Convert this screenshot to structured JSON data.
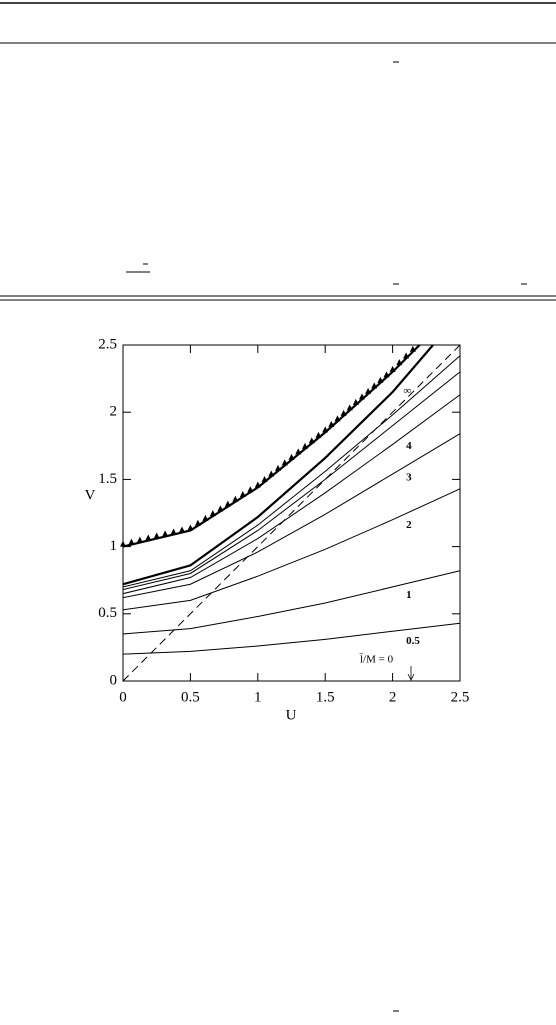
{
  "chart_data": {
    "type": "line",
    "xlabel": "U",
    "ylabel": "V",
    "annotation": "l̄/M = 0",
    "xlim": [
      0,
      2.5
    ],
    "ylim": [
      0,
      2.5
    ],
    "xticks": [
      0,
      0.5,
      1,
      1.5,
      2,
      2.5
    ],
    "yticks": [
      0,
      0.5,
      1,
      1.5,
      2,
      2.5
    ],
    "series": [
      {
        "name": "0.5",
        "color": "#000000",
        "x": [
          0,
          0.5,
          1,
          1.5,
          2,
          2.5
        ],
        "values": [
          0.2,
          0.22,
          0.26,
          0.31,
          0.37,
          0.43
        ]
      },
      {
        "name": "1",
        "color": "#000000",
        "x": [
          0,
          0.5,
          1,
          1.5,
          2,
          2.5
        ],
        "values": [
          0.35,
          0.39,
          0.48,
          0.58,
          0.7,
          0.82
        ]
      },
      {
        "name": "2",
        "color": "#000000",
        "x": [
          0,
          0.5,
          1,
          1.5,
          2,
          2.5
        ],
        "values": [
          0.53,
          0.6,
          0.78,
          0.98,
          1.2,
          1.43
        ]
      },
      {
        "name": "3",
        "color": "#000000",
        "x": [
          0,
          0.5,
          1,
          1.5,
          2,
          2.5
        ],
        "values": [
          0.62,
          0.72,
          0.96,
          1.24,
          1.54,
          1.84
        ]
      },
      {
        "name": "4",
        "color": "#000000",
        "x": [
          0,
          0.5,
          1,
          1.5,
          2,
          2.5
        ],
        "values": [
          0.65,
          0.77,
          1.06,
          1.4,
          1.76,
          2.13
        ]
      },
      {
        "color": "#000000",
        "x": [
          0,
          0.5,
          1,
          1.5,
          2,
          2.5
        ],
        "values": [
          0.68,
          0.8,
          1.12,
          1.5,
          1.9,
          2.3
        ]
      },
      {
        "color": "#000000",
        "x": [
          0,
          0.5,
          1,
          1.5,
          2,
          2.5
        ],
        "values": [
          0.7,
          0.82,
          1.16,
          1.56,
          1.98,
          2.42
        ]
      },
      {
        "name": "∞",
        "color": "#000000",
        "thick": true,
        "x": [
          0,
          0.5,
          1,
          1.5,
          2,
          2.3
        ],
        "values": [
          0.72,
          0.86,
          1.22,
          1.66,
          2.15,
          2.5
        ]
      },
      {
        "color": "#000000",
        "thick": true,
        "marker": "triangle",
        "x": [
          0,
          0.5,
          1,
          1.5,
          2,
          2.2
        ],
        "values": [
          1.0,
          1.12,
          1.44,
          1.85,
          2.3,
          2.5
        ]
      },
      {
        "color": "#000000",
        "dashed": true,
        "x": [
          0,
          2.5
        ],
        "values": [
          0,
          2.5
        ]
      }
    ]
  }
}
